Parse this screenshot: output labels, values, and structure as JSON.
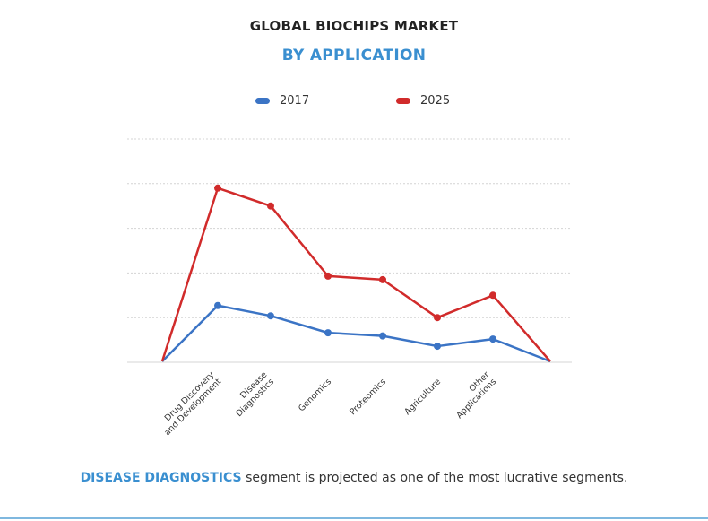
{
  "header": {
    "title": "GLOBAL BIOCHIPS MARKET",
    "subtitle": "BY APPLICATION"
  },
  "colors": {
    "accent": "#3a8fd0",
    "series_2017": "#3b74c5",
    "series_2025": "#d12b2b",
    "grid": "#d4d4d4",
    "bottom_rule": "#7fb8df"
  },
  "chart_data": {
    "type": "line",
    "categories": [
      "",
      "Drug Discovery\nand Development",
      "Disease\nDiagnostics",
      "Genomics",
      "Proteomics",
      "Agriculture",
      "Other\nApplications",
      ""
    ],
    "series": [
      {
        "name": "2017",
        "values": [
          0.2,
          12.7,
          10.4,
          6.6,
          5.9,
          3.6,
          5.2,
          0.2
        ]
      },
      {
        "name": "2025",
        "values": [
          0.2,
          39.0,
          35.0,
          19.3,
          18.5,
          10.0,
          15.0,
          0.2
        ]
      }
    ],
    "ylim": [
      0,
      50
    ],
    "y_gridlines": [
      10,
      20,
      30,
      40,
      50
    ],
    "grid": true,
    "y_tick_labels_visible": false,
    "legend": "top-center",
    "xlabel": "",
    "ylabel": ""
  },
  "footer": {
    "highlight": "DISEASE DIAGNOSTICS",
    "text": " segment is projected as one of the most lucrative segments."
  }
}
